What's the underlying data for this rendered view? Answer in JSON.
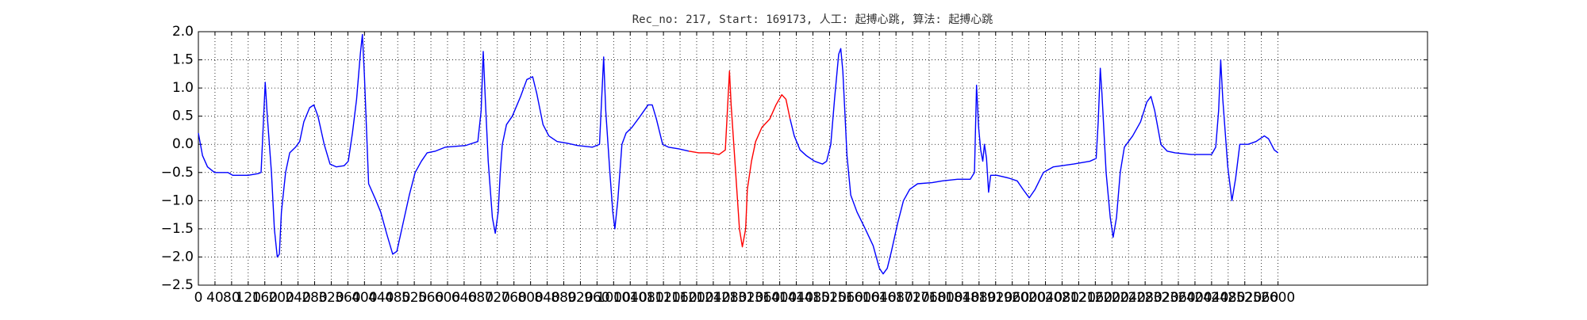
{
  "chart_data": {
    "type": "line",
    "title": "Rec_no: 217, Start: 169173, 人工: 起搏心跳, 算法: 起搏心跳",
    "grid": true,
    "xlim": [
      0,
      2960
    ],
    "ylim": [
      -2.5,
      2.0
    ],
    "xticks": [
      0,
      40,
      80,
      120,
      160,
      200,
      240,
      280,
      320,
      360,
      400,
      440,
      480,
      520,
      560,
      600,
      640,
      680,
      720,
      760,
      800,
      840,
      880,
      920,
      960,
      1000,
      1040,
      1080,
      1120,
      1160,
      1200,
      1240,
      1280,
      1320,
      1360,
      1400,
      1440,
      1480,
      1520,
      1560,
      1600,
      1640,
      1680,
      1720,
      1760,
      1800,
      1840,
      1880,
      1920,
      1960,
      2000,
      2040,
      2080,
      2120,
      2160,
      2200,
      2240,
      2280,
      2320,
      2360,
      2400,
      2440,
      2480,
      2520,
      2560,
      2600
    ],
    "yticks": [
      {
        "value": -2.5,
        "label": "−2.5"
      },
      {
        "value": -2.0,
        "label": "−2.0"
      },
      {
        "value": -1.5,
        "label": "−1.5"
      },
      {
        "value": -1.0,
        "label": "−1.0"
      },
      {
        "value": -0.5,
        "label": "−0.5"
      },
      {
        "value": 0,
        "label": "0.0"
      },
      {
        "value": 0.5,
        "label": "0.5"
      },
      {
        "value": 1.0,
        "label": "1.0"
      },
      {
        "value": 1.5,
        "label": "1.5"
      },
      {
        "value": 2.0,
        "label": "2.0"
      }
    ],
    "x": [
      0,
      10,
      22,
      39,
      71,
      83,
      120,
      144,
      151,
      156,
      161,
      166,
      176,
      183,
      190,
      195,
      200,
      210,
      220,
      234,
      244,
      254,
      268,
      278,
      288,
      303,
      317,
      332,
      351,
      361,
      371,
      381,
      390,
      395,
      400,
      410,
      425,
      439,
      454,
      468,
      478,
      493,
      508,
      522,
      537,
      551,
      571,
      595,
      644,
      673,
      681,
      686,
      691,
      698,
      708,
      715,
      722,
      727,
      732,
      742,
      756,
      776,
      791,
      805,
      815,
      830,
      844,
      864,
      888,
      913,
      949,
      966,
      976,
      981,
      991,
      998,
      1003,
      1010,
      1020,
      1030,
      1044,
      1064,
      1083,
      1093,
      1103,
      1118,
      1132,
      1157,
      1181,
      1205,
      1230,
      1254,
      1269,
      1274,
      1279,
      1283,
      1293,
      1303,
      1310,
      1318,
      1322,
      1332,
      1342,
      1357,
      1376,
      1391,
      1405,
      1415,
      1425,
      1435,
      1449,
      1464,
      1484,
      1503,
      1513,
      1523,
      1532,
      1542,
      1547,
      1552,
      1562,
      1571,
      1586,
      1606,
      1625,
      1640,
      1649,
      1659,
      1669,
      1684,
      1698,
      1713,
      1732,
      1767,
      1791,
      1828,
      1859,
      1869,
      1874,
      1879,
      1884,
      1889,
      1893,
      1898,
      1903,
      1908,
      1923,
      1952,
      1972,
      1986,
      2001,
      2015,
      2035,
      2059,
      2108,
      2147,
      2162,
      2167,
      2172,
      2176,
      2186,
      2196,
      2203,
      2211,
      2220,
      2230,
      2250,
      2269,
      2284,
      2294,
      2303,
      2318,
      2333,
      2352,
      2391,
      2440,
      2450,
      2457,
      2462,
      2467,
      2479,
      2489,
      2498,
      2508,
      2528,
      2547,
      2567,
      2577,
      2591,
      2600
    ],
    "series": [
      {
        "color": "#0000ff",
        "values": [
          0.2,
          -0.2,
          -0.4,
          -0.5,
          -0.5,
          -0.55,
          -0.55,
          -0.52,
          -0.5,
          0.3,
          1.1,
          0.5,
          -0.5,
          -1.5,
          -2.0,
          -1.95,
          -1.2,
          -0.5,
          -0.15,
          -0.05,
          0.05,
          0.4,
          0.65,
          0.7,
          0.5,
          0.0,
          -0.35,
          -0.4,
          -0.38,
          -0.3,
          0.2,
          0.8,
          1.6,
          1.95,
          1.2,
          -0.7,
          -0.95,
          -1.2,
          -1.6,
          -1.95,
          -1.9,
          -1.4,
          -0.9,
          -0.5,
          -0.3,
          -0.15,
          -0.12,
          -0.05,
          -0.02,
          0.05,
          0.6,
          1.65,
          0.8,
          -0.3,
          -1.3,
          -1.58,
          -1.2,
          -0.5,
          0.0,
          0.35,
          0.5,
          0.85,
          1.15,
          1.2,
          0.9,
          0.35,
          0.15,
          0.05,
          0.02,
          -0.02,
          -0.05,
          0.0,
          1.55,
          0.6,
          -0.5,
          -1.2,
          -1.5,
          -1.0,
          0.0,
          0.2,
          0.3,
          0.5,
          0.7,
          0.7,
          0.45,
          0.0,
          -0.05,
          -0.08,
          -0.12,
          null,
          null,
          null,
          null,
          null,
          null,
          null,
          null,
          null,
          null,
          null,
          null,
          null,
          null,
          null,
          null,
          null,
          null,
          null,
          0.45,
          0.15,
          -0.1,
          -0.2,
          -0.3,
          -0.35,
          -0.3,
          0.0,
          0.8,
          1.6,
          1.7,
          1.3,
          -0.2,
          -0.9,
          -1.2,
          -1.5,
          -1.8,
          -2.2,
          -2.3,
          -2.2,
          -1.9,
          -1.4,
          -1.0,
          -0.8,
          -0.7,
          -0.68,
          -0.65,
          -0.62,
          -0.62,
          -0.5,
          1.05,
          0.3,
          -0.1,
          -0.3,
          0.0,
          -0.25,
          -0.85,
          -0.55,
          -0.55,
          -0.6,
          -0.65,
          -0.8,
          -0.95,
          -0.8,
          -0.5,
          -0.4,
          -0.35,
          -0.3,
          -0.25,
          0.4,
          1.35,
          0.9,
          -0.5,
          -1.3,
          -1.65,
          -1.3,
          -0.5,
          -0.05,
          0.15,
          0.4,
          0.75,
          0.85,
          0.6,
          0.0,
          -0.12,
          -0.15,
          -0.18,
          -0.18,
          -0.05,
          0.6,
          1.5,
          0.8,
          -0.4,
          -1.0,
          -0.6,
          0.0,
          0.0,
          0.05,
          0.15,
          0.1,
          -0.1,
          -0.15
        ]
      },
      {
        "color": "#ff0000",
        "values": [
          null,
          null,
          null,
          null,
          null,
          null,
          null,
          null,
          null,
          null,
          null,
          null,
          null,
          null,
          null,
          null,
          null,
          null,
          null,
          null,
          null,
          null,
          null,
          null,
          null,
          null,
          null,
          null,
          null,
          null,
          null,
          null,
          null,
          null,
          null,
          null,
          null,
          null,
          null,
          null,
          null,
          null,
          null,
          null,
          null,
          null,
          null,
          null,
          null,
          null,
          null,
          null,
          null,
          null,
          null,
          null,
          null,
          null,
          null,
          null,
          null,
          null,
          null,
          null,
          null,
          null,
          null,
          null,
          null,
          null,
          null,
          null,
          null,
          null,
          null,
          null,
          null,
          null,
          null,
          null,
          null,
          null,
          null,
          null,
          null,
          null,
          null,
          null,
          -0.12,
          -0.15,
          -0.15,
          -0.18,
          -0.1,
          0.6,
          1.3,
          0.7,
          -0.4,
          -1.5,
          -1.82,
          -1.5,
          -0.8,
          -0.3,
          0.05,
          0.3,
          0.45,
          0.7,
          0.88,
          0.8,
          0.45,
          null,
          null,
          null,
          null,
          null,
          null,
          null,
          null,
          null,
          null,
          null,
          null,
          null,
          null,
          null,
          null,
          null,
          null,
          null,
          null,
          null,
          null,
          null,
          null,
          null,
          null,
          null,
          null,
          null,
          null,
          null,
          null,
          null,
          null,
          null,
          null,
          null,
          null,
          null,
          null,
          null,
          null,
          null,
          null,
          null,
          null,
          null,
          null,
          null,
          null,
          null,
          null,
          null,
          null,
          null,
          null,
          null,
          null,
          null,
          null,
          null,
          null,
          null,
          null,
          null,
          null,
          null,
          null,
          null,
          null,
          null,
          null,
          null,
          null,
          null,
          null,
          null,
          null,
          null,
          null,
          null
        ]
      }
    ]
  }
}
